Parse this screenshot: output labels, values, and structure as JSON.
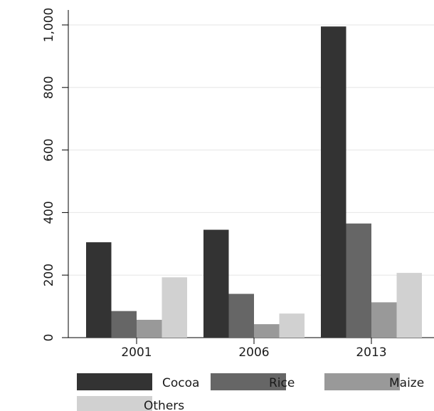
{
  "chart_data": {
    "type": "bar",
    "title": "",
    "xlabel": "",
    "ylabel": "",
    "categories": [
      "2001",
      "2006",
      "2013"
    ],
    "ylim": [
      0,
      1000
    ],
    "yticks": [
      0,
      200,
      400,
      600,
      800,
      1000
    ],
    "ytick_labels": [
      "0",
      "200",
      "400",
      "600",
      "800",
      "1,000"
    ],
    "grid": true,
    "legend_position": "bottom",
    "series": [
      {
        "name": "Cocoa",
        "color": "#333333",
        "values": [
          305,
          345,
          995
        ]
      },
      {
        "name": "Rice",
        "color": "#666666",
        "values": [
          85,
          140,
          365
        ]
      },
      {
        "name": "Maize",
        "color": "#999999",
        "values": [
          57,
          43,
          113
        ]
      },
      {
        "name": "Others",
        "color": "#d1d1d1",
        "values": [
          193,
          77,
          207
        ]
      }
    ]
  }
}
